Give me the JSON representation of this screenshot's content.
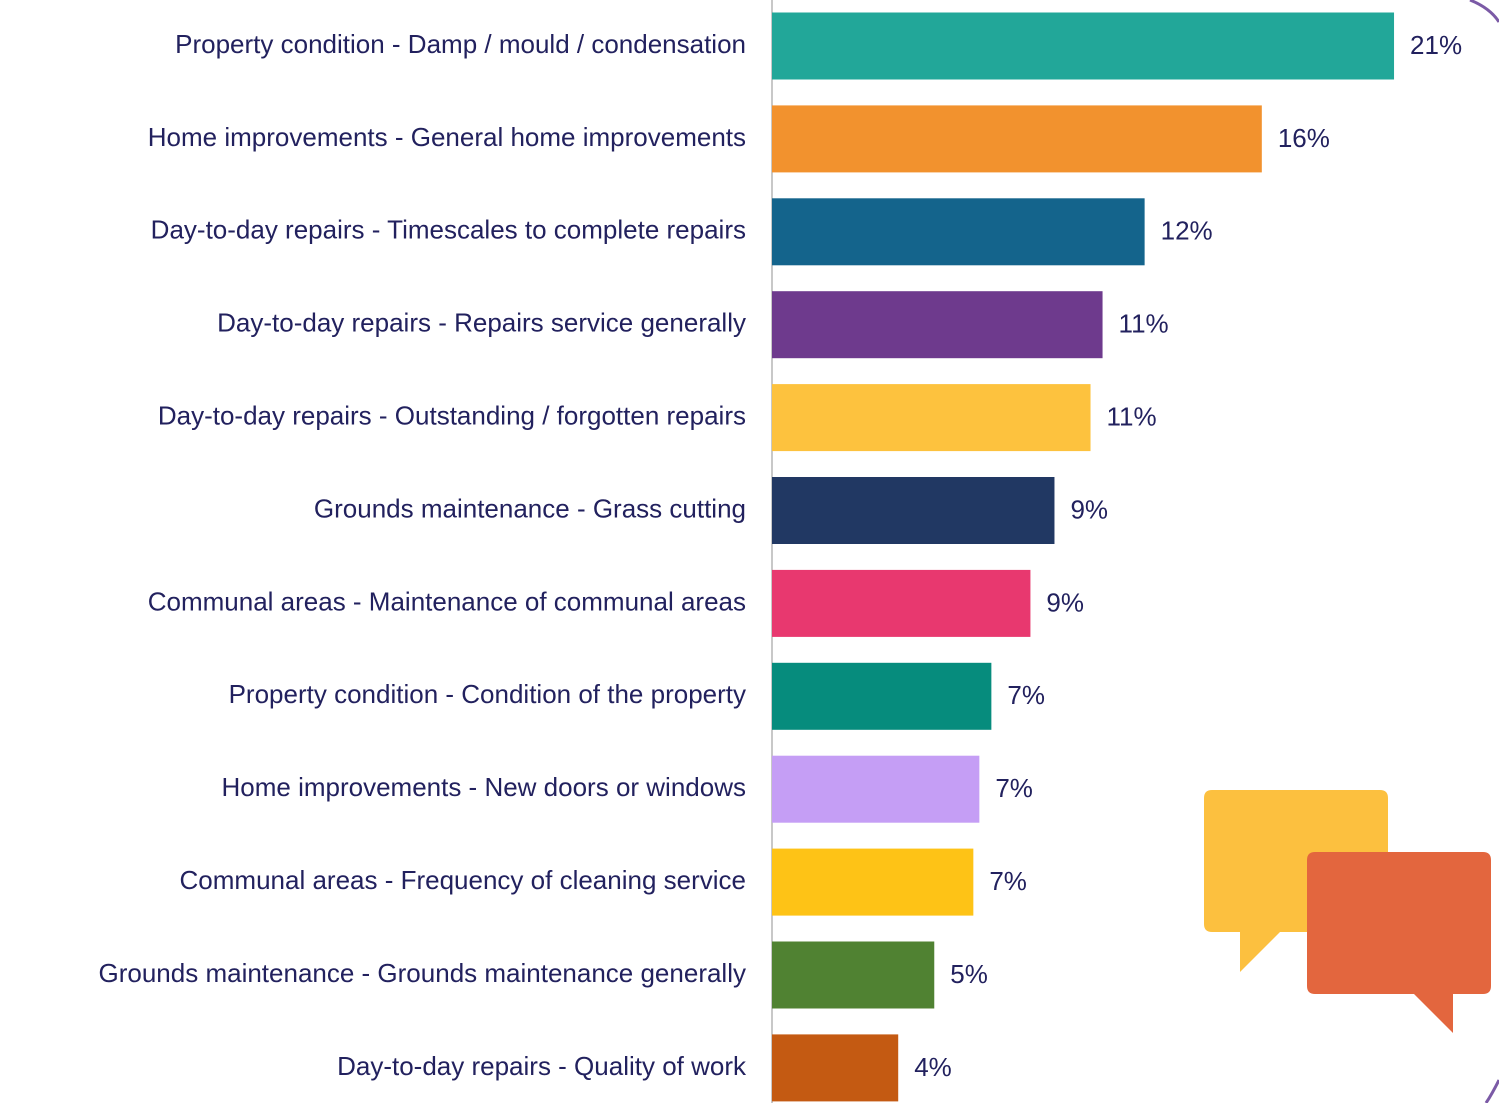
{
  "chart_data": {
    "type": "bar",
    "orientation": "horizontal",
    "categories": [
      "Property condition - Damp / mould / condensation",
      "Home improvements - General home improvements",
      "Day-to-day repairs - Timescales to complete repairs",
      "Day-to-day repairs - Repairs service generally",
      "Day-to-day repairs - Outstanding / forgotten repairs",
      "Grounds maintenance - Grass cutting",
      "Communal areas - Maintenance of communal areas",
      "Property condition - Condition of the property",
      "Home improvements - New doors or windows",
      "Communal areas - Frequency of cleaning service",
      "Grounds maintenance - Grounds maintenance generally",
      "Day-to-day repairs - Quality of work"
    ],
    "values": [
      20.7,
      16.3,
      12.4,
      11.0,
      10.6,
      9.4,
      8.6,
      7.3,
      6.9,
      6.7,
      5.4,
      4.2
    ],
    "value_labels": [
      "21%",
      "16%",
      "12%",
      "11%",
      "11%",
      "9%",
      "9%",
      "7%",
      "7%",
      "7%",
      "5%",
      "4%"
    ],
    "colors": [
      "#22a799",
      "#f2922e",
      "#14648c",
      "#6e3a8d",
      "#fdc23e",
      "#213863",
      "#e8386f",
      "#068c7d",
      "#c59ef5",
      "#fec316",
      "#508232",
      "#c45a12"
    ]
  }
}
